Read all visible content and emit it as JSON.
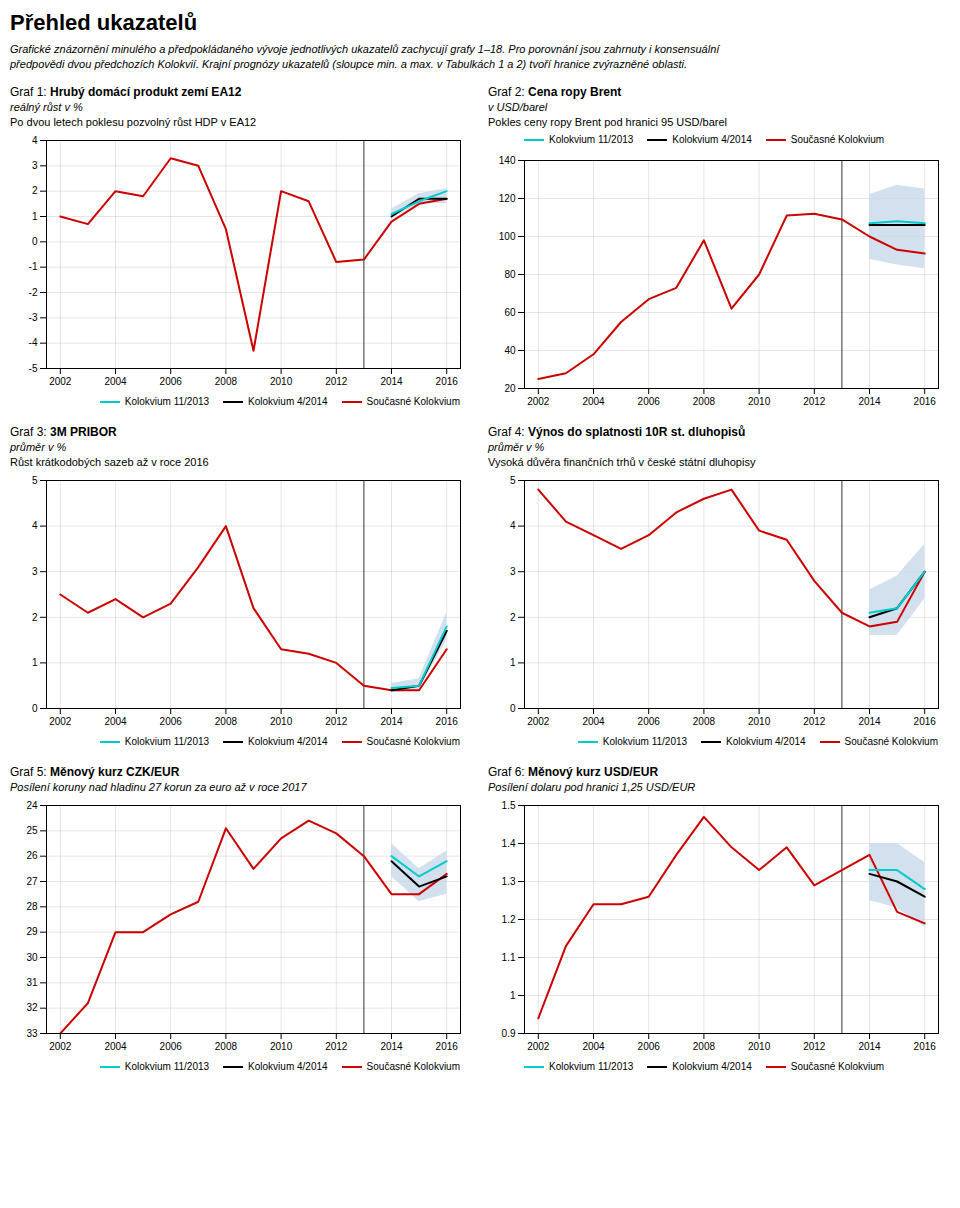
{
  "title": "Přehled ukazatelů",
  "subtitle": "Grafické znázornění minulého a předpokládaného vývoje jednotlivých ukazatelů zachycují grafy 1–18. Pro porovnání jsou zahrnuty i konsensuální\npředpovědi dvou předchozích Kolokvií. Krajní prognózy ukazatelů (sloupce min. a max. v Tabulkách 1 a 2) tvoří hranice zvýrazněné oblasti.",
  "chart_data": [
    {
      "type": "line",
      "title": "Graf 1: Hrubý domácí produkt zemí EA12",
      "subtitle": "reálný růst v %",
      "annotations": [
        "Po dvou letech poklesu pozvolný růst HDP v EA12"
      ],
      "x": [
        2002,
        2003,
        2004,
        2005,
        2006,
        2007,
        2008,
        2009,
        2010,
        2011,
        2012,
        2013,
        2014,
        2015,
        2016
      ],
      "xlim": [
        2001.5,
        2016.5
      ],
      "xticks": [
        2002,
        2004,
        2006,
        2008,
        2010,
        2012,
        2014,
        2016
      ],
      "ylim": [
        -5,
        4
      ],
      "yticks": [
        -5,
        -4,
        -3,
        -2,
        -1,
        0,
        1,
        2,
        3,
        4
      ],
      "grid": true,
      "legend": "lower right",
      "rule_x": 2013,
      "band": {
        "color": "#c8d8e8",
        "min": [
          null,
          null,
          null,
          null,
          null,
          null,
          null,
          null,
          null,
          null,
          null,
          null,
          0.9,
          1.5,
          1.5
        ],
        "max": [
          null,
          null,
          null,
          null,
          null,
          null,
          null,
          null,
          null,
          null,
          null,
          null,
          1.3,
          1.9,
          2.1
        ]
      },
      "series": [
        {
          "name": "Kolokvium 11/2013",
          "color": "#00cccc",
          "values": [
            null,
            null,
            null,
            null,
            null,
            null,
            null,
            null,
            null,
            null,
            null,
            null,
            1.1,
            1.6,
            2.0
          ]
        },
        {
          "name": "Kolokvium 4/2014",
          "color": "#000000",
          "values": [
            null,
            null,
            null,
            null,
            null,
            null,
            null,
            null,
            null,
            null,
            null,
            null,
            1.0,
            1.7,
            1.7
          ]
        },
        {
          "name": "Současné Kolokvium",
          "color": "#cc0000",
          "values": [
            1.0,
            0.7,
            2.0,
            1.8,
            3.3,
            3.0,
            0.5,
            -4.3,
            2.0,
            1.6,
            -0.8,
            -0.7,
            0.8,
            1.5,
            1.7
          ]
        }
      ]
    },
    {
      "type": "line",
      "title": "Graf 2: Cena ropy Brent",
      "subtitle": "v USD/barel",
      "annotations": [
        "Pokles ceny ropy Brent pod hranici 95 USD/barel"
      ],
      "x": [
        2002,
        2003,
        2004,
        2005,
        2006,
        2007,
        2008,
        2009,
        2010,
        2011,
        2012,
        2013,
        2014,
        2015,
        2016
      ],
      "xlim": [
        2001.5,
        2016.5
      ],
      "xticks": [
        2002,
        2004,
        2006,
        2008,
        2010,
        2012,
        2014,
        2016
      ],
      "ylim": [
        20,
        140
      ],
      "yticks": [
        20,
        40,
        60,
        80,
        100,
        120,
        140
      ],
      "grid": true,
      "legend": "upper left",
      "rule_x": 2013,
      "band": {
        "color": "#c8d8e8",
        "min": [
          null,
          null,
          null,
          null,
          null,
          null,
          null,
          null,
          null,
          null,
          null,
          null,
          88,
          85,
          83
        ],
        "max": [
          null,
          null,
          null,
          null,
          null,
          null,
          null,
          null,
          null,
          null,
          null,
          null,
          122,
          127,
          125
        ]
      },
      "series": [
        {
          "name": "Kolokvium 11/2013",
          "color": "#00cccc",
          "values": [
            null,
            null,
            null,
            null,
            null,
            null,
            null,
            null,
            null,
            null,
            null,
            null,
            107,
            108,
            107
          ]
        },
        {
          "name": "Kolokvium 4/2014",
          "color": "#000000",
          "values": [
            null,
            null,
            null,
            null,
            null,
            null,
            null,
            null,
            null,
            null,
            null,
            null,
            106,
            106,
            106
          ]
        },
        {
          "name": "Současné Kolokvium",
          "color": "#cc0000",
          "values": [
            25,
            28,
            38,
            55,
            67,
            73,
            98,
            62,
            80,
            111,
            112,
            109,
            100,
            93,
            91
          ]
        }
      ]
    },
    {
      "type": "line",
      "title": "Graf 3: 3M PRIBOR",
      "subtitle": "průměr v %",
      "annotations": [
        "Růst krátkodobých sazeb až v roce 2016"
      ],
      "x": [
        2002,
        2003,
        2004,
        2005,
        2006,
        2007,
        2008,
        2009,
        2010,
        2011,
        2012,
        2013,
        2014,
        2015,
        2016
      ],
      "xlim": [
        2001.5,
        2016.5
      ],
      "xticks": [
        2002,
        2004,
        2006,
        2008,
        2010,
        2012,
        2014,
        2016
      ],
      "ylim": [
        0,
        5
      ],
      "yticks": [
        0,
        1,
        2,
        3,
        4,
        5
      ],
      "grid": true,
      "legend": "lower right",
      "rule_x": 2013,
      "band": {
        "color": "#c8d8e8",
        "min": [
          null,
          null,
          null,
          null,
          null,
          null,
          null,
          null,
          null,
          null,
          null,
          null,
          0.35,
          0.4,
          1.5
        ],
        "max": [
          null,
          null,
          null,
          null,
          null,
          null,
          null,
          null,
          null,
          null,
          null,
          null,
          0.55,
          0.65,
          2.1
        ]
      },
      "series": [
        {
          "name": "Kolokvium 11/2013",
          "color": "#00cccc",
          "values": [
            null,
            null,
            null,
            null,
            null,
            null,
            null,
            null,
            null,
            null,
            null,
            null,
            0.45,
            0.5,
            1.8
          ]
        },
        {
          "name": "Kolokvium 4/2014",
          "color": "#000000",
          "values": [
            null,
            null,
            null,
            null,
            null,
            null,
            null,
            null,
            null,
            null,
            null,
            null,
            0.4,
            0.5,
            1.7
          ]
        },
        {
          "name": "Současné Kolokvium",
          "color": "#cc0000",
          "values": [
            2.5,
            2.1,
            2.4,
            2.0,
            2.3,
            3.1,
            4.0,
            2.2,
            1.3,
            1.2,
            1.0,
            0.5,
            0.4,
            0.4,
            1.3
          ]
        }
      ]
    },
    {
      "type": "line",
      "title": "Graf 4: Výnos do splatnosti 10R st. dluhopisů",
      "subtitle": "průměr v %",
      "annotations": [
        "Vysoká důvěra finančních trhů v české státní dluhopisy"
      ],
      "x": [
        2002,
        2003,
        2004,
        2005,
        2006,
        2007,
        2008,
        2009,
        2010,
        2011,
        2012,
        2013,
        2014,
        2015,
        2016
      ],
      "xlim": [
        2001.5,
        2016.5
      ],
      "xticks": [
        2002,
        2004,
        2006,
        2008,
        2010,
        2012,
        2014,
        2016
      ],
      "ylim": [
        0,
        5
      ],
      "yticks": [
        0,
        1,
        2,
        3,
        4,
        5
      ],
      "grid": true,
      "legend": "lower right",
      "rule_x": 2013,
      "band": {
        "color": "#c8d8e8",
        "min": [
          null,
          null,
          null,
          null,
          null,
          null,
          null,
          null,
          null,
          null,
          null,
          null,
          1.6,
          1.6,
          2.4
        ],
        "max": [
          null,
          null,
          null,
          null,
          null,
          null,
          null,
          null,
          null,
          null,
          null,
          null,
          2.6,
          2.9,
          3.6
        ]
      },
      "series": [
        {
          "name": "Kolokvium 11/2013",
          "color": "#00cccc",
          "values": [
            null,
            null,
            null,
            null,
            null,
            null,
            null,
            null,
            null,
            null,
            null,
            null,
            2.1,
            2.2,
            3.0
          ]
        },
        {
          "name": "Kolokvium 4/2014",
          "color": "#000000",
          "values": [
            null,
            null,
            null,
            null,
            null,
            null,
            null,
            null,
            null,
            null,
            null,
            null,
            2.0,
            2.2,
            3.0
          ]
        },
        {
          "name": "Současné Kolokvium",
          "color": "#cc0000",
          "values": [
            4.8,
            4.1,
            3.8,
            3.5,
            3.8,
            4.3,
            4.6,
            4.8,
            3.9,
            3.7,
            2.8,
            2.1,
            1.8,
            1.9,
            3.0
          ]
        }
      ]
    },
    {
      "type": "line",
      "title": "Graf 5: Měnový kurz CZK/EUR",
      "subtitle": "Posílení koruny nad hladinu 27 korun za euro až v roce 2017",
      "x": [
        2002,
        2003,
        2004,
        2005,
        2006,
        2007,
        2008,
        2009,
        2010,
        2011,
        2012,
        2013,
        2014,
        2015,
        2016
      ],
      "xlim": [
        2001.5,
        2016.5
      ],
      "xticks": [
        2002,
        2004,
        2006,
        2008,
        2010,
        2012,
        2014,
        2016
      ],
      "ylim": [
        33,
        24
      ],
      "yticks": [
        24,
        25,
        26,
        27,
        28,
        29,
        30,
        31,
        32,
        33
      ],
      "grid": true,
      "legend": "lower right",
      "rule_x": 2013,
      "band": {
        "color": "#c8d8e8",
        "min": [
          null,
          null,
          null,
          null,
          null,
          null,
          null,
          null,
          null,
          null,
          null,
          null,
          25.5,
          26.5,
          25.8
        ],
        "max": [
          null,
          null,
          null,
          null,
          null,
          null,
          null,
          null,
          null,
          null,
          null,
          null,
          26.8,
          27.8,
          27.5
        ]
      },
      "series": [
        {
          "name": "Kolokvium 11/2013",
          "color": "#00cccc",
          "values": [
            null,
            null,
            null,
            null,
            null,
            null,
            null,
            null,
            null,
            null,
            null,
            null,
            26.0,
            26.8,
            26.2
          ]
        },
        {
          "name": "Kolokvium 4/2014",
          "color": "#000000",
          "values": [
            null,
            null,
            null,
            null,
            null,
            null,
            null,
            null,
            null,
            null,
            null,
            null,
            26.2,
            27.2,
            26.8
          ]
        },
        {
          "name": "Současné Kolokvium",
          "color": "#cc0000",
          "values": [
            33.0,
            31.8,
            29.0,
            29.0,
            28.3,
            27.8,
            24.9,
            26.5,
            25.3,
            24.6,
            25.1,
            26.0,
            27.5,
            27.5,
            26.7
          ]
        }
      ]
    },
    {
      "type": "line",
      "title": "Graf 6: Měnový kurz USD/EUR",
      "subtitle": "Posílení dolaru pod hranici 1,25 USD/EUR",
      "x": [
        2002,
        2003,
        2004,
        2005,
        2006,
        2007,
        2008,
        2009,
        2010,
        2011,
        2012,
        2013,
        2014,
        2015,
        2016
      ],
      "xlim": [
        2001.5,
        2016.5
      ],
      "xticks": [
        2002,
        2004,
        2006,
        2008,
        2010,
        2012,
        2014,
        2016
      ],
      "ylim": [
        0.9,
        1.5
      ],
      "yticks": [
        0.9,
        1,
        1.1,
        1.2,
        1.3,
        1.4,
        1.5
      ],
      "grid": true,
      "legend": "lower left",
      "rule_x": 2013,
      "band": {
        "color": "#c8d8e8",
        "min": [
          null,
          null,
          null,
          null,
          null,
          null,
          null,
          null,
          null,
          null,
          null,
          null,
          1.25,
          1.23,
          1.18
        ],
        "max": [
          null,
          null,
          null,
          null,
          null,
          null,
          null,
          null,
          null,
          null,
          null,
          null,
          1.4,
          1.4,
          1.35
        ]
      },
      "series": [
        {
          "name": "Kolokvium 11/2013",
          "color": "#00cccc",
          "values": [
            null,
            null,
            null,
            null,
            null,
            null,
            null,
            null,
            null,
            null,
            null,
            null,
            1.33,
            1.33,
            1.28
          ]
        },
        {
          "name": "Kolokvium 4/2014",
          "color": "#000000",
          "values": [
            null,
            null,
            null,
            null,
            null,
            null,
            null,
            null,
            null,
            null,
            null,
            null,
            1.32,
            1.3,
            1.26
          ]
        },
        {
          "name": "Současné Kolokvium",
          "color": "#cc0000",
          "values": [
            0.94,
            1.13,
            1.24,
            1.24,
            1.26,
            1.37,
            1.47,
            1.39,
            1.33,
            1.39,
            1.29,
            1.33,
            1.37,
            1.22,
            1.19
          ]
        }
      ]
    }
  ]
}
